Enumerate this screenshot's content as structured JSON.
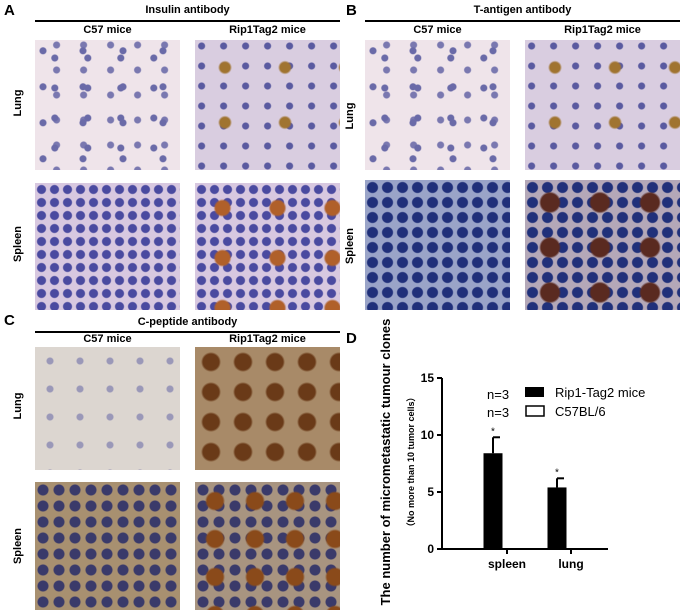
{
  "panels": {
    "A": {
      "label": "A",
      "title": "Insulin antibody",
      "col1": "C57 mice",
      "col2": "Rip1Tag2 mice",
      "row1": "Lung",
      "row2": "Spleen"
    },
    "B": {
      "label": "B",
      "title": "T-antigen antibody",
      "col1": "C57 mice",
      "col2": "Rip1Tag2 mice",
      "row1": "Lung",
      "row2": "Spleen"
    },
    "C": {
      "label": "C",
      "title": "C-peptide antibody",
      "col1": "C57 mice",
      "col2": "Rip1Tag2 mice",
      "row1": "Lung",
      "row2": "Spleen"
    },
    "D": {
      "label": "D"
    }
  },
  "chart_data": {
    "type": "bar",
    "categories": [
      "spleen",
      "lung"
    ],
    "series": [
      {
        "name": "Rip1-Tag2 mice",
        "values": [
          8.4,
          5.4
        ],
        "errors": [
          1.4,
          0.8
        ],
        "color": "#000000"
      },
      {
        "name": "C57BL/6",
        "values": [
          0,
          0
        ],
        "color": "#ffffff"
      }
    ],
    "significance": [
      "*",
      "*"
    ],
    "ylabel": "The number of micrometastatic tumour clones",
    "ylabel_sub": "（No more than 10 tumor cells）",
    "ylim": [
      0,
      15
    ],
    "yticks": [
      "0",
      "5",
      "10",
      "15"
    ],
    "legend_placement": "top-right",
    "annotations": [
      "n=3",
      "n=3"
    ],
    "grid": false
  }
}
